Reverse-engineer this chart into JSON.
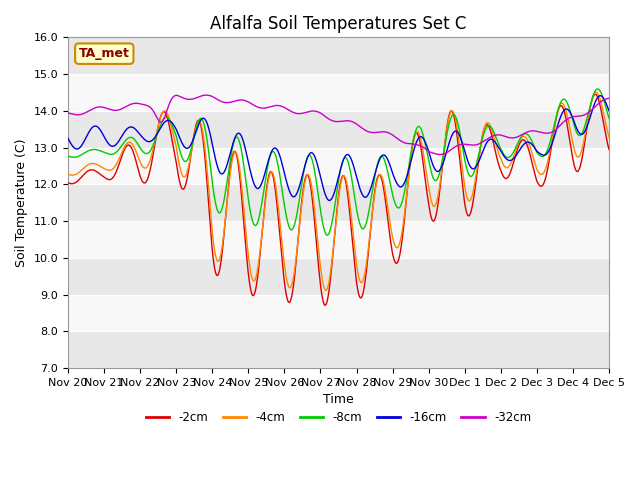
{
  "title": "Alfalfa Soil Temperatures Set C",
  "ylabel": "Soil Temperature (C)",
  "xlabel": "Time",
  "ylim": [
    7.0,
    16.0
  ],
  "yticks": [
    7.0,
    8.0,
    9.0,
    10.0,
    11.0,
    12.0,
    13.0,
    14.0,
    15.0,
    16.0
  ],
  "colors": {
    "-2cm": "#dd0000",
    "-4cm": "#ff8800",
    "-8cm": "#00cc00",
    "-16cm": "#0000dd",
    "-32cm": "#cc00cc"
  },
  "legend_labels": [
    "-2cm",
    "-4cm",
    "-8cm",
    "-16cm",
    "-32cm"
  ],
  "annotation": "TA_met",
  "background_color": "#ffffff",
  "band_colors": [
    "#e8e8e8",
    "#f8f8f8"
  ],
  "title_fontsize": 12,
  "axis_fontsize": 9,
  "tick_fontsize": 8
}
